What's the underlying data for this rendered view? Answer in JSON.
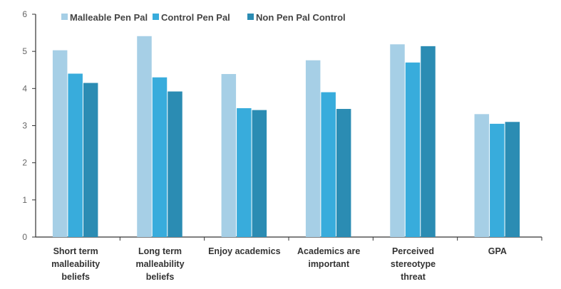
{
  "chart_data": {
    "type": "bar",
    "title": "",
    "xlabel": "",
    "ylabel": "",
    "ylim": [
      0,
      6
    ],
    "yticks": [
      "0",
      "1",
      "2",
      "3",
      "4",
      "5",
      "6"
    ],
    "grid": false,
    "legend_position": "top",
    "categories": [
      [
        "Short term",
        "malleability",
        "beliefs"
      ],
      [
        "Long term",
        "malleability",
        "beliefs"
      ],
      [
        "Enjoy academics"
      ],
      [
        "Academics are",
        "important"
      ],
      [
        "Perceived",
        "stereotype",
        "threat"
      ],
      [
        "GPA"
      ]
    ],
    "series": [
      {
        "name": "Malleable Pen Pal",
        "color": "#a6cfe6",
        "values": [
          5.03,
          5.41,
          4.39,
          4.76,
          5.19,
          3.31
        ]
      },
      {
        "name": "Control Pen Pal",
        "color": "#38acdc",
        "values": [
          4.4,
          4.3,
          3.47,
          3.9,
          4.7,
          3.05
        ]
      },
      {
        "name": "Non Pen Pal Control",
        "color": "#2b8cb3",
        "values": [
          4.15,
          3.92,
          3.42,
          3.45,
          5.14,
          3.1
        ]
      }
    ]
  }
}
